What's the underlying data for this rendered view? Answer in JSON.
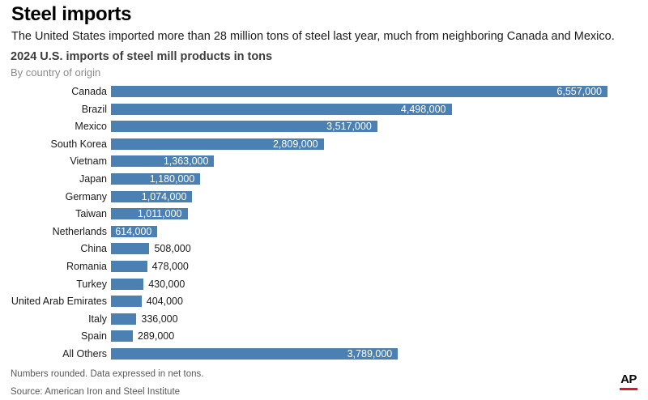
{
  "header": {
    "title": "Steel imports",
    "subtitle": "The United States imported more than 28 million tons of steel last year, much from neighboring Canada and Mexico."
  },
  "chart_data": {
    "type": "bar",
    "orientation": "horizontal",
    "title": "2024 U.S. imports of steel mill products in tons",
    "subtitle": "By country of origin",
    "categories": [
      "Canada",
      "Brazil",
      "Mexico",
      "South Korea",
      "Vietnam",
      "Japan",
      "Germany",
      "Taiwan",
      "Netherlands",
      "China",
      "Romania",
      "Turkey",
      "United Arab Emirates",
      "Italy",
      "Spain",
      "All Others"
    ],
    "values": [
      6557000,
      4498000,
      3517000,
      2809000,
      1363000,
      1180000,
      1074000,
      1011000,
      614000,
      508000,
      478000,
      430000,
      404000,
      336000,
      289000,
      3789000
    ],
    "value_labels": [
      "6,557,000",
      "4,498,000",
      "3,517,000",
      "2,809,000",
      "1,363,000",
      "1,180,000",
      "1,074,000",
      "1,011,000",
      "614,000",
      "508,000",
      "478,000",
      "430,000",
      "404,000",
      "336,000",
      "289,000",
      "3,789,000"
    ],
    "xlim": [
      0,
      6557000
    ],
    "grid": false,
    "legend": false,
    "bar_color": "#4a80b2",
    "inside_label_color": "#ffffff",
    "outside_label_color": "#1a1a1a",
    "inside_label_min": 600000
  },
  "footer": {
    "note": "Numbers rounded. Data expressed in net tons.",
    "source": "Source: American Iron and Steel Institute",
    "logo": "AP",
    "logo_underline_color": "#e8112d"
  }
}
